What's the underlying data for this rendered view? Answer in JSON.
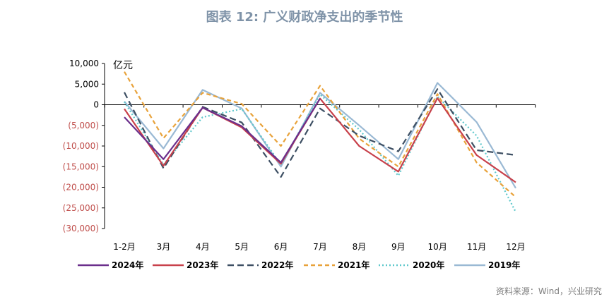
{
  "title": "图表 12: 广义财政净支出的季节性",
  "source": "资料来源：Wind，兴业研究",
  "chart_data": {
    "type": "line",
    "unit_label": "亿元",
    "categories": [
      "1-2月",
      "3月",
      "4月",
      "5月",
      "6月",
      "7月",
      "8月",
      "9月",
      "10月",
      "11月",
      "12月"
    ],
    "ylim": [
      -30000,
      10000
    ],
    "yticks": [
      10000,
      5000,
      0,
      -5000,
      -10000,
      -15000,
      -20000,
      -25000,
      -30000
    ],
    "ytick_labels": [
      "10,000",
      "5,000",
      "0",
      "(5,000)",
      "(10,000)",
      "(15,000)",
      "(20,000)",
      "(25,000)",
      "(30,000)"
    ],
    "legend_position": "bottom",
    "series": [
      {
        "name": "2024年",
        "color": "#6b2f8c",
        "dash": "solid",
        "values": [
          -3000,
          -13200,
          -700,
          -5200,
          -14000,
          1500,
          null,
          null,
          null,
          null,
          null
        ]
      },
      {
        "name": "2023年",
        "color": "#c8414b",
        "dash": "solid",
        "values": [
          -1000,
          -14800,
          -700,
          -5500,
          -14300,
          1500,
          -10000,
          -16200,
          1600,
          -12200,
          -18800
        ]
      },
      {
        "name": "2022年",
        "color": "#3d4f63",
        "dash": "longdash",
        "values": [
          3000,
          -15400,
          -500,
          -4300,
          -17500,
          -900,
          -7500,
          -11300,
          3800,
          -11000,
          -12200
        ]
      },
      {
        "name": "2021年",
        "color": "#e8a23a",
        "dash": "dash",
        "values": [
          8000,
          -8100,
          2900,
          200,
          -10000,
          4600,
          -8200,
          -15000,
          2600,
          -14000,
          -22400
        ]
      },
      {
        "name": "2020年",
        "color": "#5fc8cc",
        "dash": "dot",
        "values": [
          700,
          -14500,
          -3000,
          -1000,
          -14500,
          2500,
          -6000,
          -17200,
          2000,
          -7500,
          -26000
        ]
      },
      {
        "name": "2019年",
        "color": "#9ab9d4",
        "dash": "solid",
        "values": [
          800,
          -10600,
          3600,
          -900,
          -15000,
          2900,
          -5000,
          -13200,
          5300,
          -4200,
          -20200
        ]
      }
    ]
  }
}
